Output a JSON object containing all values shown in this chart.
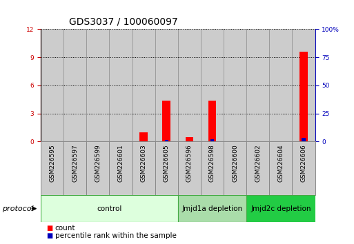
{
  "title": "GDS3037 / 100060097",
  "samples": [
    "GSM226595",
    "GSM226597",
    "GSM226599",
    "GSM226601",
    "GSM226603",
    "GSM226605",
    "GSM226596",
    "GSM226598",
    "GSM226600",
    "GSM226602",
    "GSM226604",
    "GSM226606"
  ],
  "count_values": [
    0,
    0,
    0,
    0,
    1.0,
    4.4,
    0.45,
    4.4,
    0,
    0,
    0,
    9.6
  ],
  "percentile_values": [
    0,
    0,
    0,
    0,
    0.25,
    1.5,
    0.2,
    2.0,
    0,
    0,
    0,
    3.0
  ],
  "count_color": "#FF0000",
  "percentile_color": "#0000BB",
  "left_ylim": [
    0,
    12
  ],
  "right_ylim": [
    0,
    100
  ],
  "left_yticks": [
    0,
    3,
    6,
    9,
    12
  ],
  "right_yticks": [
    0,
    25,
    50,
    75,
    100
  ],
  "right_yticklabels": [
    "0",
    "25",
    "50",
    "75",
    "100%"
  ],
  "groups": [
    {
      "label": "control",
      "start": 0,
      "end": 6,
      "color": "#ddffdd",
      "edge_color": "#44aa44"
    },
    {
      "label": "Jmjd1a depletion",
      "start": 6,
      "end": 9,
      "color": "#aaddaa",
      "edge_color": "#44aa44"
    },
    {
      "label": "Jmjd2c depletion",
      "start": 9,
      "end": 12,
      "color": "#22cc44",
      "edge_color": "#44aa44"
    }
  ],
  "protocol_label": "protocol",
  "bar_width": 0.35,
  "grid_color": "#000000",
  "title_fontsize": 10,
  "tick_fontsize": 6.5,
  "label_fontsize": 8,
  "legend_fontsize": 7.5,
  "group_label_fontsize": 7.5,
  "left_axis_color": "#CC0000",
  "right_axis_color": "#0000BB",
  "col_bg_color": "#cccccc",
  "col_border_color": "#888888"
}
